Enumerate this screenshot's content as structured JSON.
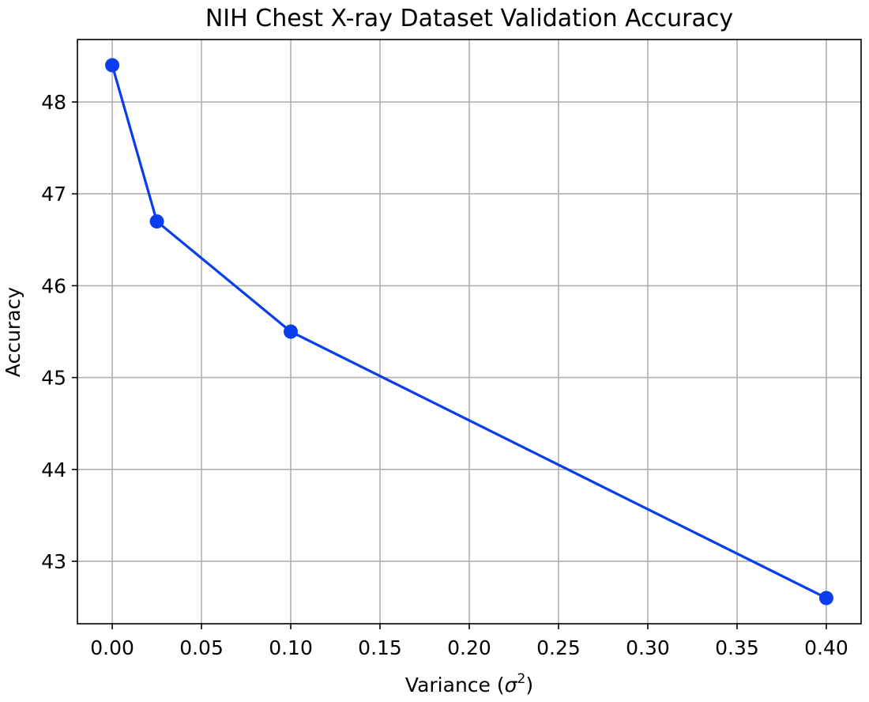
{
  "chart_data": {
    "type": "line",
    "title": "NIH Chest X-ray Dataset Validation Accuracy",
    "xlabel": "Variance (",
    "xlabel_symbol": "σ",
    "xlabel_superscript": "2",
    "xlabel_suffix": ")",
    "ylabel": "Accuracy",
    "xlim": [
      -0.0195,
      0.4195
    ],
    "ylim": [
      42.32,
      48.68
    ],
    "xticks": [
      0.0,
      0.05,
      0.1,
      0.15,
      0.2,
      0.25,
      0.3,
      0.35,
      0.4
    ],
    "xtick_labels": [
      "0.00",
      "0.05",
      "0.10",
      "0.15",
      "0.20",
      "0.25",
      "0.30",
      "0.35",
      "0.40"
    ],
    "yticks": [
      43,
      44,
      45,
      46,
      47,
      48
    ],
    "ytick_labels": [
      "43",
      "44",
      "45",
      "46",
      "47",
      "48"
    ],
    "grid": true,
    "series": [
      {
        "color": "#0a3cf0",
        "marker": "circle",
        "points": [
          {
            "x": 0.0,
            "y": 48.4
          },
          {
            "x": 0.025,
            "y": 46.7
          },
          {
            "x": 0.1,
            "y": 45.5
          },
          {
            "x": 0.4,
            "y": 42.6
          }
        ]
      }
    ]
  }
}
